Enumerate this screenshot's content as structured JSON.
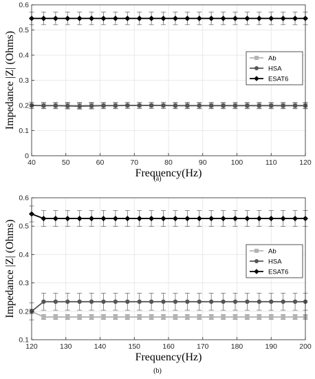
{
  "chart_data": [
    {
      "type": "line",
      "caption": "(a)",
      "xlabel": "Frequency(Hz)",
      "ylabel": "Impedance |Z| (Ohms)",
      "xlim": [
        40,
        120
      ],
      "ylim": [
        0,
        0.6
      ],
      "xticks": [
        40,
        50,
        60,
        70,
        80,
        90,
        100,
        110,
        120
      ],
      "yticks": [
        0,
        0.1,
        0.2,
        0.3,
        0.4,
        0.5,
        0.6
      ],
      "ytick_labels": [
        "0",
        "0.1",
        "0.2",
        "0.3",
        "0.4",
        "0.5",
        "0.6"
      ],
      "grid": true,
      "legend_position": "right",
      "x": [
        40,
        43.5,
        47,
        50.5,
        54,
        57.5,
        61,
        64.5,
        68,
        71.5,
        75,
        78.5,
        82,
        85.5,
        89,
        92.5,
        96,
        99.5,
        103,
        106.5,
        110,
        113.5,
        117,
        120
      ],
      "series": [
        {
          "name": "Ab",
          "color": "#b4b4b4",
          "marker": "square",
          "values": [
            0.2,
            0.2,
            0.2,
            0.2,
            0.2,
            0.2,
            0.2,
            0.2,
            0.2,
            0.2,
            0.2,
            0.2,
            0.2,
            0.2,
            0.2,
            0.2,
            0.2,
            0.2,
            0.2,
            0.2,
            0.2,
            0.2,
            0.2,
            0.2
          ],
          "error": 0.012
        },
        {
          "name": "HSA",
          "color": "#555555",
          "marker": "circle",
          "values": [
            0.2,
            0.199,
            0.199,
            0.198,
            0.197,
            0.198,
            0.199,
            0.199,
            0.2,
            0.2,
            0.2,
            0.2,
            0.199,
            0.199,
            0.199,
            0.199,
            0.199,
            0.199,
            0.199,
            0.199,
            0.199,
            0.199,
            0.199,
            0.199
          ],
          "error": 0.012
        },
        {
          "name": "ESAT6",
          "color": "#000000",
          "marker": "diamond",
          "values": [
            0.546,
            0.546,
            0.546,
            0.546,
            0.546,
            0.546,
            0.546,
            0.546,
            0.546,
            0.546,
            0.546,
            0.546,
            0.546,
            0.546,
            0.546,
            0.546,
            0.546,
            0.546,
            0.546,
            0.546,
            0.546,
            0.546,
            0.546,
            0.546
          ],
          "error": 0.025
        }
      ]
    },
    {
      "type": "line",
      "caption": "(b)",
      "xlabel": "Frequency(Hz)",
      "ylabel": "Impedance |Z| (Ohms)",
      "xlim": [
        120,
        200
      ],
      "ylim": [
        0.1,
        0.6
      ],
      "xticks": [
        120,
        130,
        140,
        150,
        160,
        170,
        180,
        190,
        200
      ],
      "yticks": [
        0.1,
        0.2,
        0.3,
        0.4,
        0.5,
        0.6
      ],
      "ytick_labels": [
        "0.1",
        "0.2",
        "0.3",
        "0.4",
        "0.5",
        "0.6"
      ],
      "grid": true,
      "legend_position": "right",
      "x": [
        120,
        123.5,
        127,
        130.5,
        134,
        137.5,
        141,
        144.5,
        148,
        151.5,
        155,
        158.5,
        162,
        165.5,
        169,
        172.5,
        176,
        179.5,
        183,
        186.5,
        190,
        193.5,
        197,
        200
      ],
      "series": [
        {
          "name": "Ab",
          "color": "#b4b4b4",
          "marker": "square",
          "values": [
            0.2,
            0.18,
            0.18,
            0.18,
            0.18,
            0.18,
            0.18,
            0.18,
            0.18,
            0.18,
            0.18,
            0.18,
            0.18,
            0.18,
            0.18,
            0.18,
            0.18,
            0.18,
            0.18,
            0.18,
            0.18,
            0.18,
            0.18,
            0.18
          ],
          "error": 0.008
        },
        {
          "name": "HSA",
          "color": "#555555",
          "marker": "circle",
          "values": [
            0.2,
            0.234,
            0.234,
            0.234,
            0.234,
            0.234,
            0.234,
            0.234,
            0.234,
            0.234,
            0.234,
            0.234,
            0.234,
            0.234,
            0.234,
            0.234,
            0.234,
            0.234,
            0.234,
            0.234,
            0.234,
            0.234,
            0.234,
            0.234
          ],
          "error": 0.03
        },
        {
          "name": "ESAT6",
          "color": "#000000",
          "marker": "diamond",
          "values": [
            0.543,
            0.527,
            0.527,
            0.527,
            0.527,
            0.527,
            0.527,
            0.527,
            0.527,
            0.527,
            0.527,
            0.527,
            0.527,
            0.527,
            0.527,
            0.527,
            0.527,
            0.527,
            0.527,
            0.527,
            0.527,
            0.527,
            0.527,
            0.527
          ],
          "error": 0.028
        }
      ]
    }
  ]
}
